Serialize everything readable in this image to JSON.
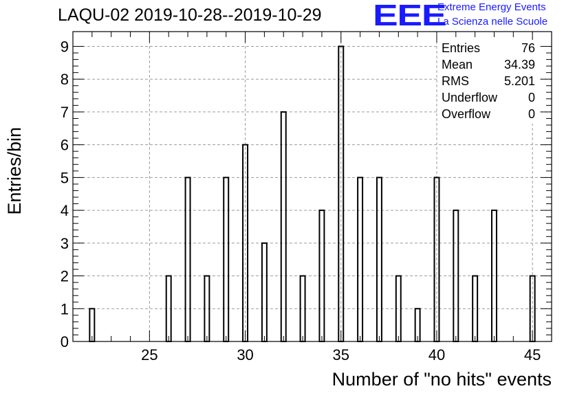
{
  "chart_data": {
    "type": "bar",
    "title": "LAQU-02 2019-10-28--2019-10-29",
    "xlabel": "Number of \"no hits\" events",
    "ylabel": "Entries/bin",
    "xlim": [
      21,
      46
    ],
    "ylim": [
      0,
      9.45
    ],
    "bin_width": 0.25,
    "grid": true,
    "x_ticks": [
      25,
      30,
      35,
      40,
      45
    ],
    "y_ticks": [
      0,
      1,
      2,
      3,
      4,
      5,
      6,
      7,
      8,
      9
    ],
    "bins": [
      {
        "x": 22,
        "count": 1
      },
      {
        "x": 26,
        "count": 2
      },
      {
        "x": 27,
        "count": 5
      },
      {
        "x": 28,
        "count": 2
      },
      {
        "x": 29,
        "count": 5
      },
      {
        "x": 30,
        "count": 6
      },
      {
        "x": 31,
        "count": 3
      },
      {
        "x": 32,
        "count": 7
      },
      {
        "x": 33,
        "count": 2
      },
      {
        "x": 34,
        "count": 4
      },
      {
        "x": 35,
        "count": 9
      },
      {
        "x": 36,
        "count": 5
      },
      {
        "x": 37,
        "count": 5
      },
      {
        "x": 38,
        "count": 2
      },
      {
        "x": 39,
        "count": 1
      },
      {
        "x": 40,
        "count": 5
      },
      {
        "x": 41,
        "count": 4
      },
      {
        "x": 42,
        "count": 2
      },
      {
        "x": 43,
        "count": 4
      },
      {
        "x": 45,
        "count": 2
      }
    ]
  },
  "stats": [
    {
      "name": "Entries",
      "value": "76"
    },
    {
      "name": "Mean",
      "value": "34.39"
    },
    {
      "name": "RMS",
      "value": "5.201"
    },
    {
      "name": "Underflow",
      "value": "0"
    },
    {
      "name": "Overflow",
      "value": "0"
    }
  ],
  "logo": {
    "mark": "EEE",
    "line1": "Extreme Energy Events",
    "line2": "La Scienza nelle Scuole",
    "color": "#1a1aff"
  }
}
